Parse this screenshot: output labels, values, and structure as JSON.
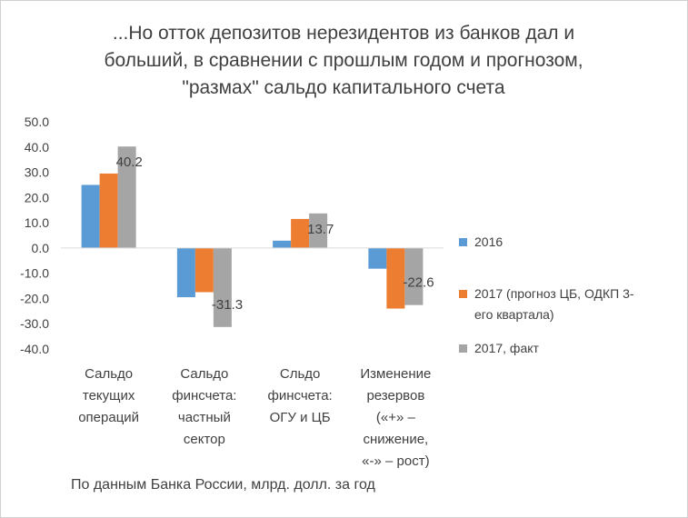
{
  "chart_data": {
    "type": "bar",
    "title_lines": [
      "...Но отток депозитов нерезидентов из банков дал и",
      "больший, в сравнении с прошлым годом и прогнозом,",
      "\"размах\" сальдо капитального счета"
    ],
    "categories": [
      [
        "Сальдо",
        "текущих",
        "операций"
      ],
      [
        "Сальдо",
        "финсчета:",
        "частный",
        "сектор"
      ],
      [
        "Сльдо",
        "финсчета:",
        "ОГУ и ЦБ"
      ],
      [
        "Изменение",
        "резервов",
        "(«+» –",
        "снижение,",
        "«-» – рост)"
      ]
    ],
    "series": [
      {
        "name": "2016",
        "color": "#5B9BD5",
        "values": [
          25.0,
          -19.5,
          2.9,
          -8.2
        ]
      },
      {
        "name": "2017 (прогноз ЦБ, ОДКП 3-его квартала)",
        "legend_lines": [
          "2017 (прогноз ЦБ, ОДКП 3-",
          "его квартала)"
        ],
        "color": "#ED7D31",
        "values": [
          29.5,
          -17.5,
          11.5,
          -24.0
        ]
      },
      {
        "name": "2017, факт",
        "color": "#A5A5A5",
        "values": [
          40.2,
          -31.3,
          13.7,
          -22.6
        ]
      }
    ],
    "data_labels": {
      "series": 2,
      "text": [
        "40.2",
        "-31.3",
        "13.7",
        "-22.6"
      ]
    },
    "yticks": [
      "50.0",
      "40.0",
      "30.0",
      "20.0",
      "10.0",
      "0.0",
      "-10.0",
      "-20.0",
      "-30.0",
      "-40.0"
    ],
    "ylim": [
      -40,
      50
    ],
    "grid": false,
    "legend_position": "right",
    "footnote": "По данным Банка России, млрд. долл. за год"
  }
}
